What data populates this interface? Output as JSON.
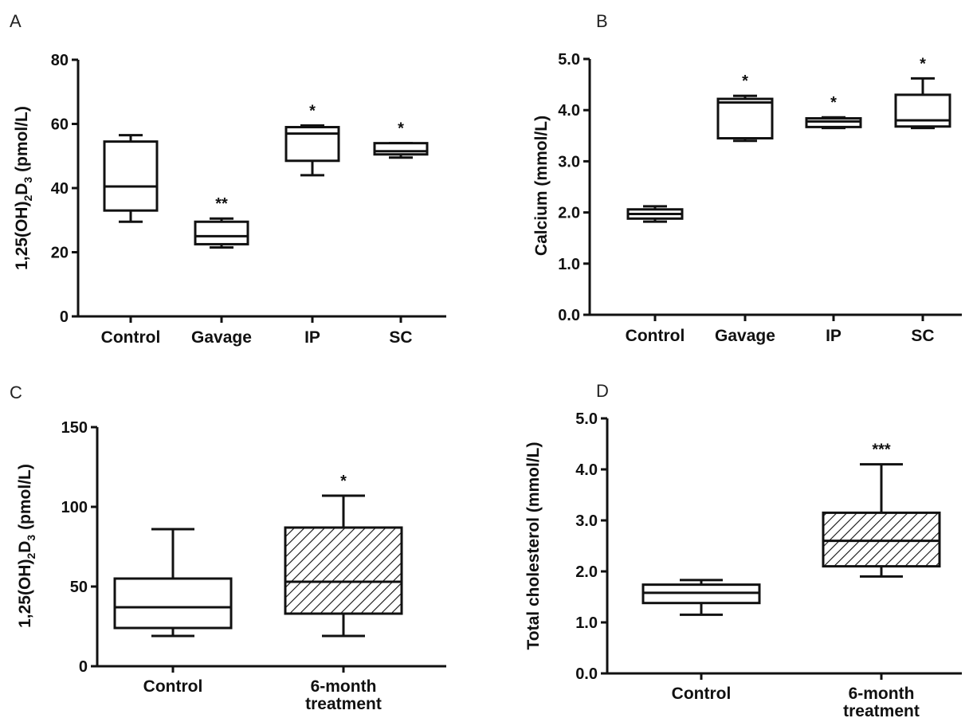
{
  "chart_data": [
    {
      "panel_letter": "A",
      "type": "box",
      "ylabel": "1,25(OH)2D3 (pmol/L)",
      "ylabel_base": "1,25(OH)",
      "ylabel_sub1": "2",
      "ylabel_mid": "D",
      "ylabel_sub2": "3",
      "ylabel_unit": " (pmol/L)",
      "ylim": [
        0,
        80
      ],
      "yticks": [
        0,
        20,
        40,
        60,
        80
      ],
      "ytick_labels": [
        "0",
        "20",
        "40",
        "60",
        "80"
      ],
      "categories": [
        "Control",
        "Gavage",
        "IP",
        "SC"
      ],
      "series": [
        {
          "boxes": [
            {
              "min": 29.5,
              "q1": 33,
              "median": 40.5,
              "q3": 54.5,
              "max": 56.5,
              "annotation": "",
              "fill": "white"
            },
            {
              "min": 21.5,
              "q1": 22.5,
              "median": 25,
              "q3": 29.5,
              "max": 30.5,
              "annotation": "**",
              "fill": "white"
            },
            {
              "min": 44,
              "q1": 48.5,
              "median": 57,
              "q3": 59,
              "max": 59.5,
              "annotation": "*",
              "fill": "white"
            },
            {
              "min": 49.5,
              "q1": 50.5,
              "median": 51.5,
              "q3": 54,
              "max": 54,
              "annotation": "*",
              "fill": "white"
            }
          ]
        }
      ]
    },
    {
      "panel_letter": "B",
      "type": "box",
      "ylabel": "Calcium (mmol/L)",
      "ylim": [
        0,
        5
      ],
      "yticks": [
        0,
        1,
        2,
        3,
        4,
        5
      ],
      "ytick_labels": [
        "0.0",
        "1.0",
        "2.0",
        "3.0",
        "4.0",
        "5.0"
      ],
      "categories": [
        "Control",
        "Gavage",
        "IP",
        "SC"
      ],
      "series": [
        {
          "boxes": [
            {
              "min": 1.82,
              "q1": 1.88,
              "median": 1.97,
              "q3": 2.06,
              "max": 2.12,
              "annotation": "",
              "fill": "white"
            },
            {
              "min": 3.4,
              "q1": 3.45,
              "median": 4.15,
              "q3": 4.22,
              "max": 4.28,
              "annotation": "*",
              "fill": "white"
            },
            {
              "min": 3.65,
              "q1": 3.67,
              "median": 3.78,
              "q3": 3.84,
              "max": 3.86,
              "annotation": "*",
              "fill": "white"
            },
            {
              "min": 3.65,
              "q1": 3.68,
              "median": 3.8,
              "q3": 4.3,
              "max": 4.62,
              "annotation": "*",
              "fill": "white"
            }
          ]
        }
      ]
    },
    {
      "panel_letter": "C",
      "type": "box",
      "ylabel": "1,25(OH)2D3 (pmol/L)",
      "ylabel_base": "1,25(OH)",
      "ylabel_sub1": "2",
      "ylabel_mid": "D",
      "ylabel_sub2": "3",
      "ylabel_unit": " (pmol/L)",
      "ylim": [
        0,
        150
      ],
      "yticks": [
        0,
        50,
        100,
        150
      ],
      "ytick_labels": [
        "0",
        "50",
        "100",
        "150"
      ],
      "categories": [
        "Control",
        "6-month treatment"
      ],
      "category_lines": [
        [
          "Control"
        ],
        [
          "6-month",
          "treatment"
        ]
      ],
      "series": [
        {
          "boxes": [
            {
              "min": 19,
              "q1": 24,
              "median": 37,
              "q3": 55,
              "max": 86,
              "annotation": "",
              "fill": "white"
            },
            {
              "min": 19,
              "q1": 33,
              "median": 53,
              "q3": 87,
              "max": 107,
              "annotation": "*",
              "fill": "hatch"
            }
          ]
        }
      ]
    },
    {
      "panel_letter": "D",
      "type": "box",
      "ylabel": "Total cholesterol (mmol/L)",
      "ylim": [
        0,
        5
      ],
      "yticks": [
        0,
        1,
        2,
        3,
        4,
        5
      ],
      "ytick_labels": [
        "0.0",
        "1.0",
        "2.0",
        "3.0",
        "4.0",
        "5.0"
      ],
      "categories": [
        "Control",
        "6-month treatment"
      ],
      "category_lines": [
        [
          "Control"
        ],
        [
          "6-month",
          "treatment"
        ]
      ],
      "series": [
        {
          "boxes": [
            {
              "min": 1.15,
              "q1": 1.38,
              "median": 1.58,
              "q3": 1.74,
              "max": 1.83,
              "annotation": "",
              "fill": "white"
            },
            {
              "min": 1.9,
              "q1": 2.1,
              "median": 2.6,
              "q3": 3.15,
              "max": 4.1,
              "annotation": "***",
              "fill": "hatch"
            }
          ]
        }
      ]
    }
  ],
  "colors": {
    "stroke": "#111111",
    "background": "#ffffff",
    "hatch": "#111111"
  }
}
